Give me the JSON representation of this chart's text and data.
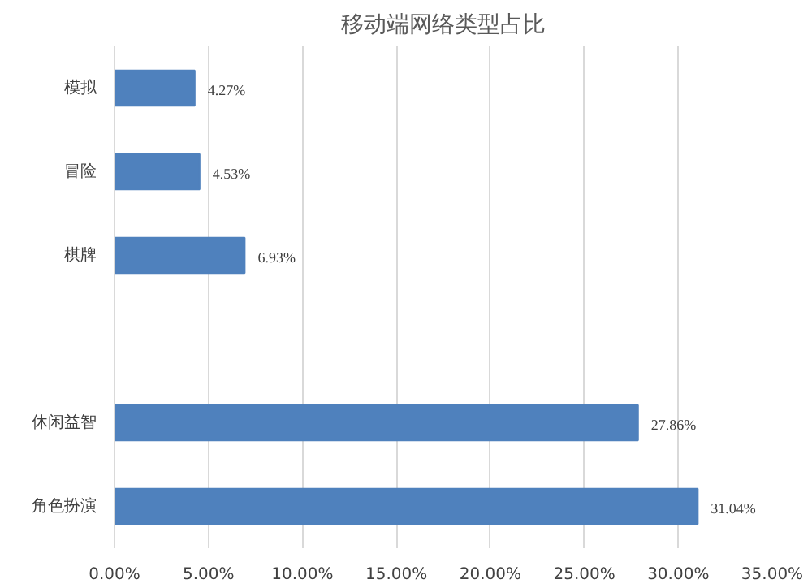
{
  "chart_data": {
    "type": "bar",
    "orientation": "horizontal",
    "title": "移动端网络类型占比",
    "categories": [
      "模拟",
      "冒险",
      "棋牌",
      null,
      "休闲益智",
      "角色扮演"
    ],
    "values": [
      4.27,
      4.53,
      6.93,
      null,
      27.86,
      31.04
    ],
    "value_labels": [
      "4.27%",
      "4.53%",
      "6.93%",
      null,
      "27.86%",
      "31.04%"
    ],
    "color": "#4f81bd",
    "xlim": [
      0,
      35
    ],
    "xticks": [
      {
        "value": 0,
        "label": "0.00%"
      },
      {
        "value": 5,
        "label": "5.00%"
      },
      {
        "value": 10,
        "label": "10.00%"
      },
      {
        "value": 15,
        "label": "15.00%"
      },
      {
        "value": 20,
        "label": "20.00%"
      },
      {
        "value": 25,
        "label": "25.00%"
      },
      {
        "value": 30,
        "label": "30.00%"
      },
      {
        "value": 35,
        "label": "35.00%"
      }
    ],
    "grid": "x"
  }
}
